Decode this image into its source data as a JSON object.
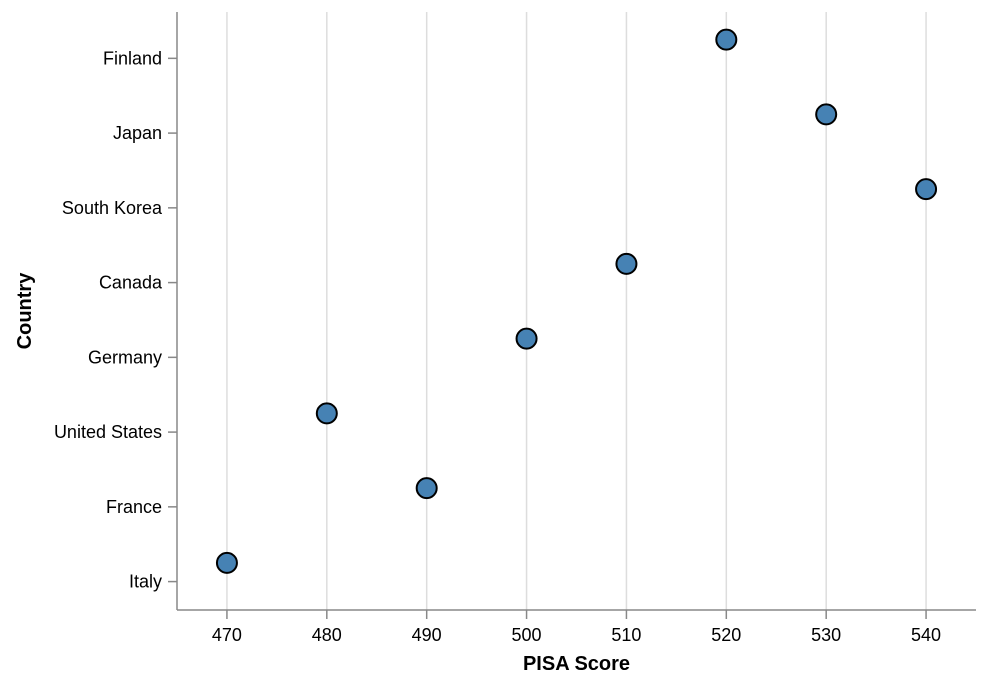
{
  "chart_data": {
    "type": "scatter",
    "title": "",
    "xlabel": "PISA Score",
    "ylabel": "Country",
    "x_ticks": [
      470,
      480,
      490,
      500,
      510,
      520,
      530,
      540
    ],
    "xlim": [
      465,
      545
    ],
    "categories": [
      "Finland",
      "Japan",
      "South Korea",
      "Canada",
      "Germany",
      "United States",
      "France",
      "Italy"
    ],
    "points": [
      {
        "country": "Finland",
        "score": 520
      },
      {
        "country": "Japan",
        "score": 530
      },
      {
        "country": "South Korea",
        "score": 540
      },
      {
        "country": "Canada",
        "score": 510
      },
      {
        "country": "Germany",
        "score": 500
      },
      {
        "country": "United States",
        "score": 480
      },
      {
        "country": "France",
        "score": 490
      },
      {
        "country": "Italy",
        "score": 470
      }
    ],
    "grid": "vertical",
    "point_color": "#4682b4",
    "point_stroke": "#000000"
  }
}
